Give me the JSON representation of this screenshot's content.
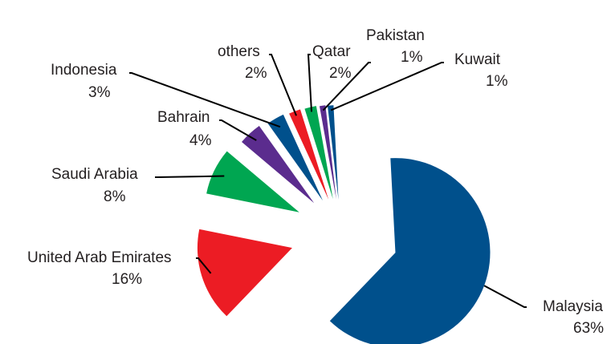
{
  "chart_data": {
    "type": "pie",
    "title": "",
    "slices": [
      {
        "label": "Malaysia",
        "value": 63,
        "pct_label": "63%",
        "color": "#00508c"
      },
      {
        "label": "United Arab Emirates",
        "value": 16,
        "pct_label": "16%",
        "color": "#ec1c24"
      },
      {
        "label": "Saudi Arabia",
        "value": 8,
        "pct_label": "8%",
        "color": "#00a651"
      },
      {
        "label": "Bahrain",
        "value": 4,
        "pct_label": "4%",
        "color": "#5b2c8e"
      },
      {
        "label": "Indonesia",
        "value": 3,
        "pct_label": "3%",
        "color": "#00508c"
      },
      {
        "label": "others",
        "value": 2,
        "pct_label": "2%",
        "color": "#ec1c24"
      },
      {
        "label": "Qatar",
        "value": 2,
        "pct_label": "2%",
        "color": "#00a651"
      },
      {
        "label": "Pakistan",
        "value": 1,
        "pct_label": "1%",
        "color": "#5b2c8e"
      },
      {
        "label": "Kuwait",
        "value": 1,
        "pct_label": "1%",
        "color": "#00508c"
      }
    ],
    "exploded": true,
    "label_style": "callout-leader-lines",
    "legend": "none"
  }
}
